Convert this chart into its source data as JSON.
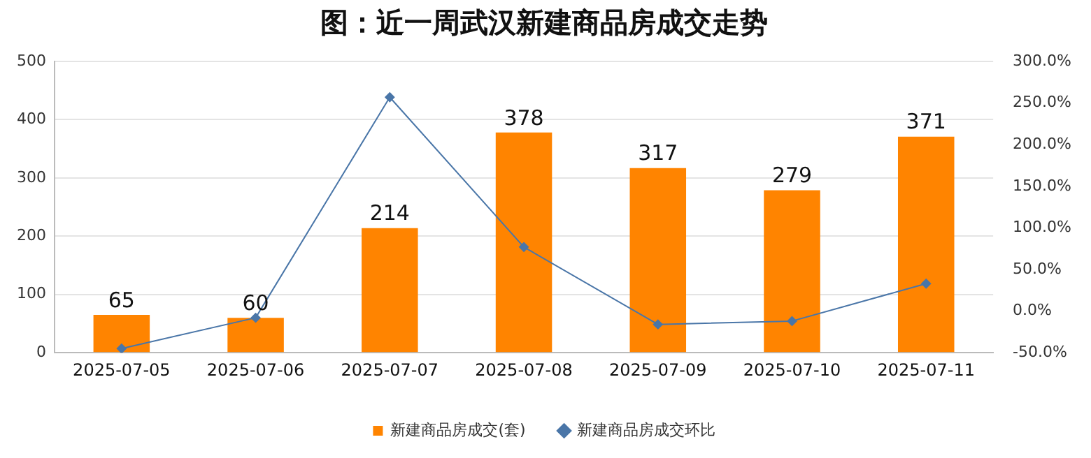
{
  "chart_data": {
    "type": "bar",
    "title": "图：近一周武汉新建商品房成交走势",
    "categories": [
      "2025-07-05",
      "2025-07-06",
      "2025-07-07",
      "2025-07-08",
      "2025-07-09",
      "2025-07-10",
      "2025-07-11"
    ],
    "series": [
      {
        "name": "新建商品房成交(套)",
        "color": "#ff8400",
        "values": [
          65,
          60,
          214,
          378,
          317,
          279,
          371
        ],
        "value_labels": [
          "65",
          "60",
          "214",
          "378",
          "317",
          "279",
          "371"
        ]
      },
      {
        "name": "新建商品房成交环比",
        "type": "line",
        "axis": "y2",
        "color": "#4a76a8",
        "marker": "diamond",
        "values": [
          -45,
          -8,
          257,
          77,
          -16,
          -12,
          33
        ]
      }
    ],
    "ylim": [
      0,
      500
    ],
    "yticks": [
      0,
      100,
      200,
      300,
      400,
      500
    ],
    "y2lim": [
      -50,
      300
    ],
    "y2ticks": [
      {
        "value": -50,
        "label": "-50.0%"
      },
      {
        "value": 0,
        "label": "0.0%"
      },
      {
        "value": 50,
        "label": "50.0%"
      },
      {
        "value": 100,
        "label": "100.0%"
      },
      {
        "value": 150,
        "label": "150.0%"
      },
      {
        "value": 200,
        "label": "200.0%"
      },
      {
        "value": 250,
        "label": "250.0%"
      },
      {
        "value": 300,
        "label": "300.0%"
      }
    ],
    "grid": "y",
    "legend": "bottom"
  }
}
